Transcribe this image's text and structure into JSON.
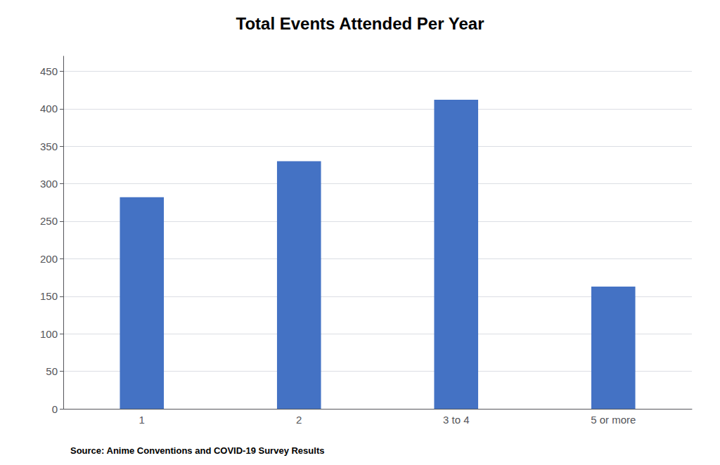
{
  "chart_data": {
    "type": "bar",
    "title": "Total Events Attended Per Year",
    "categories": [
      "1",
      "2",
      "3 to 4",
      "5 or more"
    ],
    "values": [
      282,
      330,
      412,
      163
    ],
    "color": "#4472C4",
    "ylim": [
      0,
      470
    ],
    "yticks": [
      0,
      50,
      100,
      150,
      200,
      250,
      300,
      350,
      400,
      450
    ],
    "grid": true,
    "annotations": [
      "Source: Anime Conventions and COVID-19 Survey Results"
    ]
  }
}
